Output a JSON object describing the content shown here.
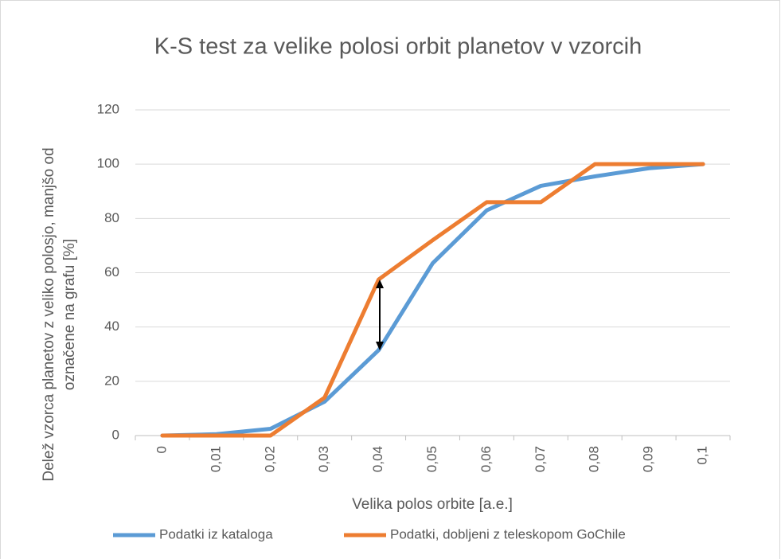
{
  "chart_data": {
    "type": "line",
    "title": "K-S test za velike polosi orbit planetov v vzorcih",
    "xlabel": "Velika polos orbite [a.e.]",
    "ylabel": [
      "Delež vzorca planetov z veliko polosjo, manjšo od",
      "označene na grafu [%]"
    ],
    "categories": [
      "0",
      "0,01",
      "0,02",
      "0,03",
      "0,04",
      "0,05",
      "0,06",
      "0,07",
      "0,08",
      "0,09",
      "0,1"
    ],
    "series": [
      {
        "name": "Podatki iz kataloga",
        "color": "#5b9bd5",
        "values": [
          0,
          0.5,
          2.5,
          12.5,
          31.5,
          63.5,
          83,
          92,
          95.5,
          98.5,
          100
        ]
      },
      {
        "name": "Podatki, dobljeni z teleskopom GoChile",
        "color": "#ed7d31",
        "values": [
          0,
          0,
          0,
          14,
          57.5,
          72,
          86,
          86,
          100,
          100,
          100
        ]
      }
    ],
    "ylim": [
      0,
      120
    ],
    "yticks": [
      0,
      20,
      40,
      60,
      80,
      100,
      120
    ],
    "grid": true,
    "legend": "bottom"
  }
}
